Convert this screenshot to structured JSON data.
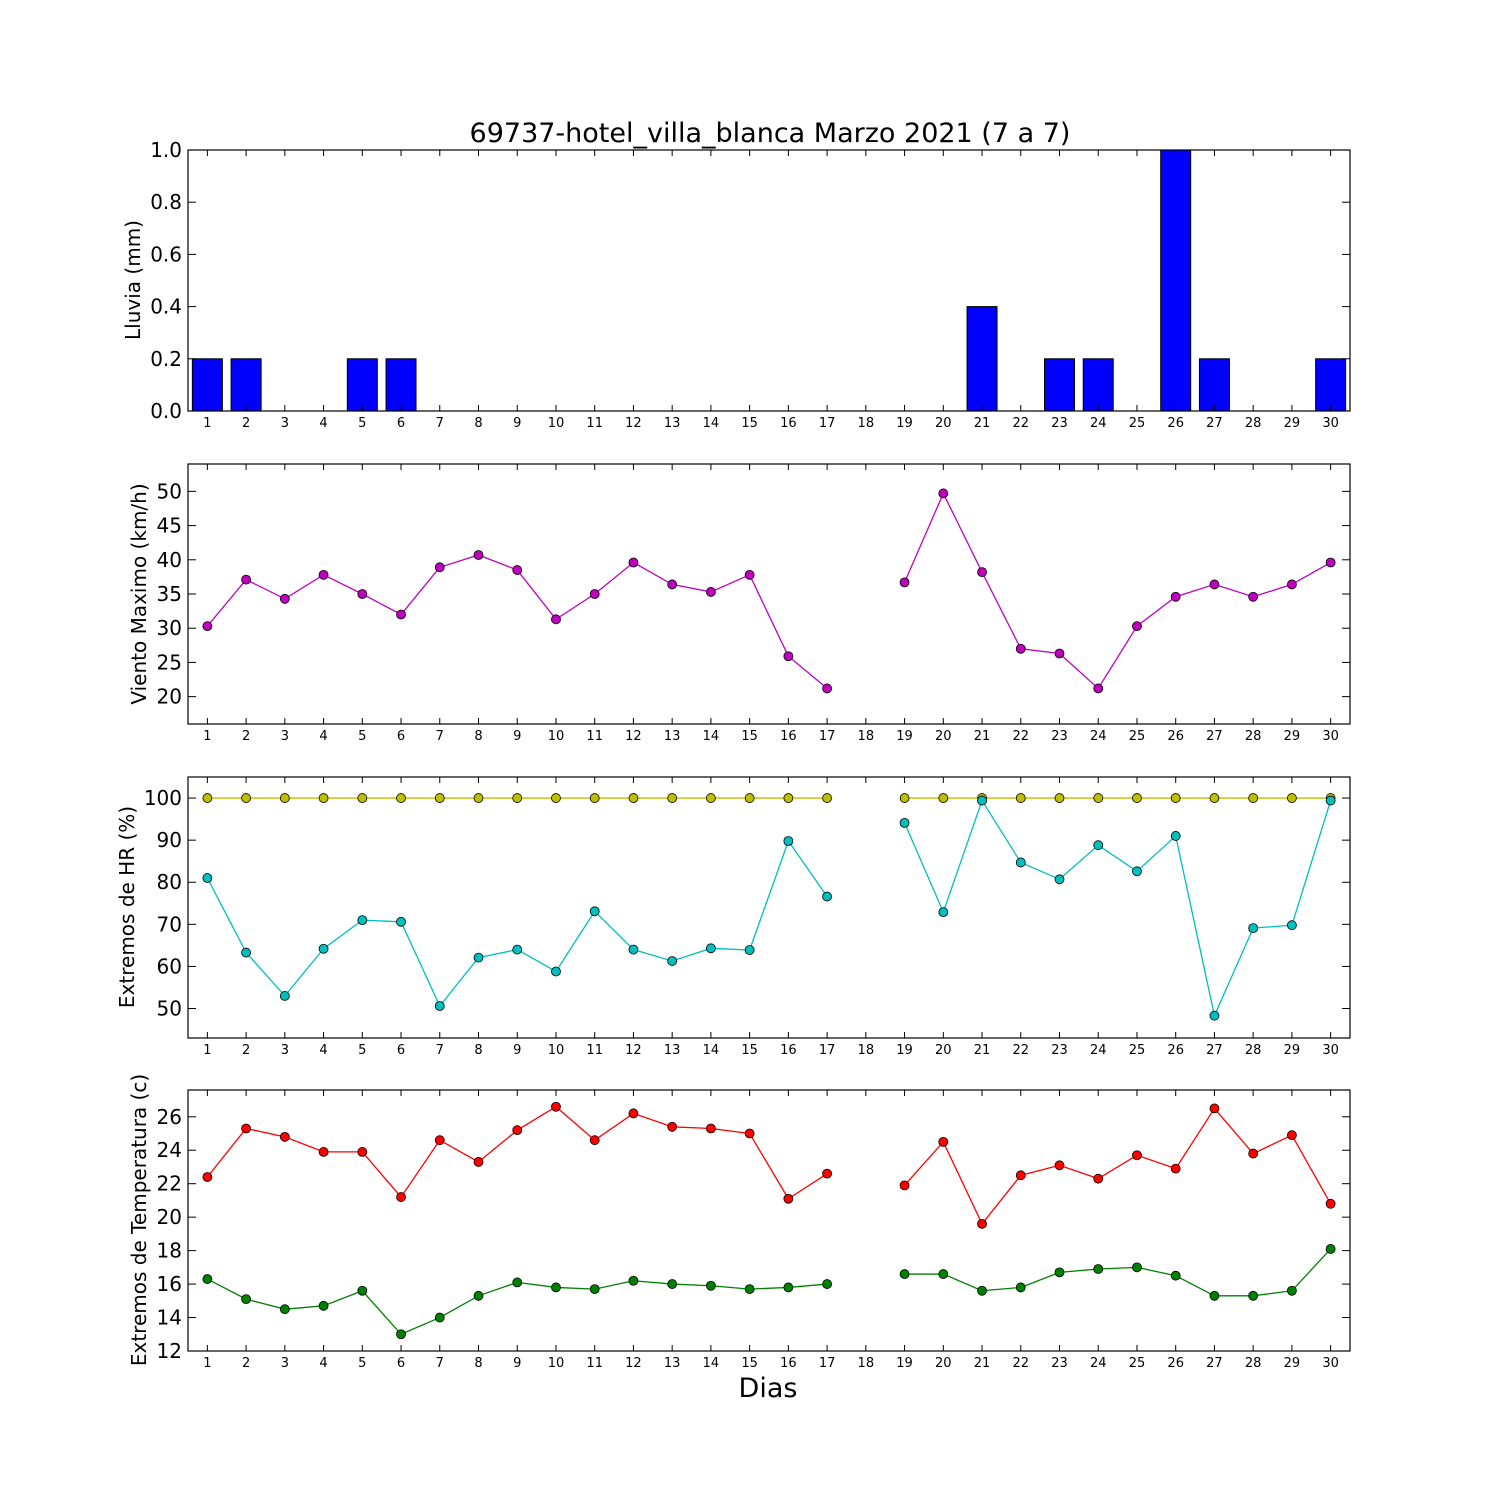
{
  "figure": {
    "title": "69737-hotel_villa_blanca Marzo 2021  (7 a 7)",
    "xlabel": "Dias"
  },
  "colors": {
    "rain": "#0000ff",
    "wind": "#bf00bf",
    "hr_max": "#bfbf00",
    "hr_min": "#00bfbf",
    "temp_max": "#ff0000",
    "temp_min": "#008000"
  },
  "chart_data": [
    {
      "type": "bar",
      "ylabel": "Lluvia (mm)",
      "categories": [
        1,
        2,
        3,
        4,
        5,
        6,
        7,
        8,
        9,
        10,
        11,
        12,
        13,
        14,
        15,
        16,
        17,
        18,
        19,
        20,
        21,
        22,
        23,
        24,
        25,
        26,
        27,
        28,
        29,
        30
      ],
      "values": [
        0.2,
        0.2,
        0,
        0,
        0.2,
        0.2,
        0,
        0,
        0,
        0,
        0,
        0,
        0,
        0,
        0,
        0,
        0,
        0,
        0,
        0,
        0.4,
        0,
        0.2,
        0.2,
        0,
        1.0,
        0.2,
        0,
        0,
        0.2
      ],
      "ylim": [
        0,
        1.0
      ],
      "yticks": [
        "0.0",
        "0.2",
        "0.4",
        "0.6",
        "0.8",
        "1.0"
      ],
      "grid": false
    },
    {
      "type": "line",
      "ylabel": "Viento Maximo (km/h)",
      "x": [
        1,
        2,
        3,
        4,
        5,
        6,
        7,
        8,
        9,
        10,
        11,
        12,
        13,
        14,
        15,
        16,
        17,
        18,
        19,
        20,
        21,
        22,
        23,
        24,
        25,
        26,
        27,
        28,
        29,
        30
      ],
      "series": [
        {
          "values": [
            30.3,
            37.1,
            34.3,
            37.8,
            35.0,
            32.0,
            38.9,
            40.7,
            38.5,
            31.3,
            35.0,
            39.6,
            36.4,
            35.3,
            37.8,
            25.9,
            21.2,
            null,
            36.7,
            49.7,
            38.2,
            27.0,
            26.3,
            21.2,
            30.3,
            34.6,
            36.4,
            34.6,
            36.4,
            39.6
          ]
        }
      ],
      "ylim": [
        16,
        54
      ],
      "yticks": [
        "20",
        "25",
        "30",
        "35",
        "40",
        "45",
        "50"
      ],
      "grid": false
    },
    {
      "type": "line",
      "ylabel": "Extremos de HR (%)",
      "x": [
        1,
        2,
        3,
        4,
        5,
        6,
        7,
        8,
        9,
        10,
        11,
        12,
        13,
        14,
        15,
        16,
        17,
        18,
        19,
        20,
        21,
        22,
        23,
        24,
        25,
        26,
        27,
        28,
        29,
        30
      ],
      "series": [
        {
          "values": [
            100,
            100,
            100,
            100,
            100,
            100,
            100,
            100,
            100,
            100,
            100,
            100,
            100,
            100,
            100,
            100,
            100,
            null,
            100,
            100,
            100,
            100,
            100,
            100,
            100,
            100,
            100,
            100,
            100,
            100
          ]
        },
        {
          "values": [
            81.0,
            63.3,
            53.0,
            64.2,
            71.0,
            70.6,
            50.6,
            62.1,
            64.0,
            58.8,
            73.1,
            64.0,
            61.3,
            64.3,
            63.9,
            89.8,
            76.6,
            null,
            94.1,
            72.9,
            99.4,
            84.7,
            80.7,
            88.8,
            82.6,
            91.0,
            48.3,
            69.1,
            69.8,
            99.4
          ]
        }
      ],
      "ylim": [
        43,
        105
      ],
      "yticks": [
        "50",
        "60",
        "70",
        "80",
        "90",
        "100"
      ],
      "grid": false
    },
    {
      "type": "line",
      "ylabel": "Extremos de Temperatura (c)",
      "x": [
        1,
        2,
        3,
        4,
        5,
        6,
        7,
        8,
        9,
        10,
        11,
        12,
        13,
        14,
        15,
        16,
        17,
        18,
        19,
        20,
        21,
        22,
        23,
        24,
        25,
        26,
        27,
        28,
        29,
        30
      ],
      "series": [
        {
          "values": [
            22.4,
            25.3,
            24.8,
            23.9,
            23.9,
            21.2,
            24.6,
            23.3,
            25.2,
            26.6,
            24.6,
            26.2,
            25.4,
            25.3,
            25.0,
            21.1,
            22.6,
            null,
            21.9,
            24.5,
            19.6,
            22.5,
            23.1,
            22.3,
            23.7,
            22.9,
            26.5,
            23.8,
            24.9,
            20.8
          ]
        },
        {
          "values": [
            16.3,
            15.1,
            14.5,
            14.7,
            15.6,
            13.0,
            14.0,
            15.3,
            16.1,
            15.8,
            15.7,
            16.2,
            16.0,
            15.9,
            15.7,
            15.8,
            16.0,
            null,
            16.6,
            16.6,
            15.6,
            15.8,
            16.7,
            16.9,
            17.0,
            16.5,
            15.3,
            15.3,
            15.6,
            18.1
          ]
        }
      ],
      "ylim": [
        12,
        27.6
      ],
      "yticks": [
        "12",
        "14",
        "16",
        "18",
        "20",
        "22",
        "24",
        "26"
      ],
      "grid": false
    }
  ]
}
